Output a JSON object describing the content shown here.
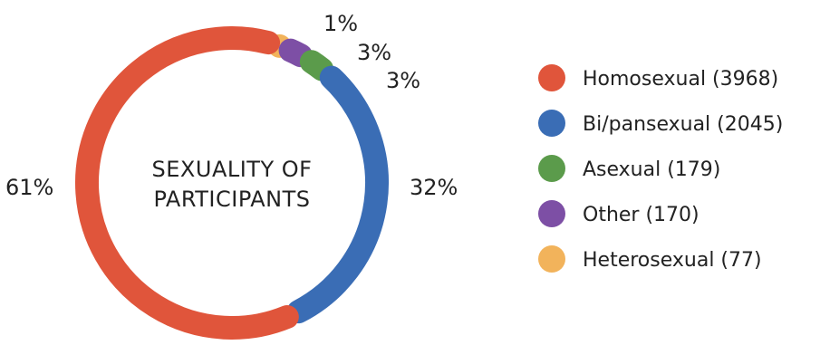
{
  "chart_data": {
    "type": "pie",
    "title": [
      "SEXUALITY OF",
      "PARTICIPANTS"
    ],
    "slices": [
      {
        "label": "Homosexual (3968)",
        "value": 3968,
        "percent_label": "61%",
        "color": "#E0553B"
      },
      {
        "label": "Bi/pansexual (2045)",
        "value": 2045,
        "percent_label": "32%",
        "color": "#3A6DB5"
      },
      {
        "label": "Asexual (179)",
        "value": 179,
        "percent_label": "3%",
        "color": "#5B9B4B"
      },
      {
        "label": "Other (170)",
        "value": 170,
        "percent_label": "3%",
        "color": "#7D4FA5"
      },
      {
        "label": "Heterosexual (77)",
        "value": 77,
        "percent_label": "1%",
        "color": "#F2B35B"
      }
    ],
    "legend_position": "right"
  }
}
